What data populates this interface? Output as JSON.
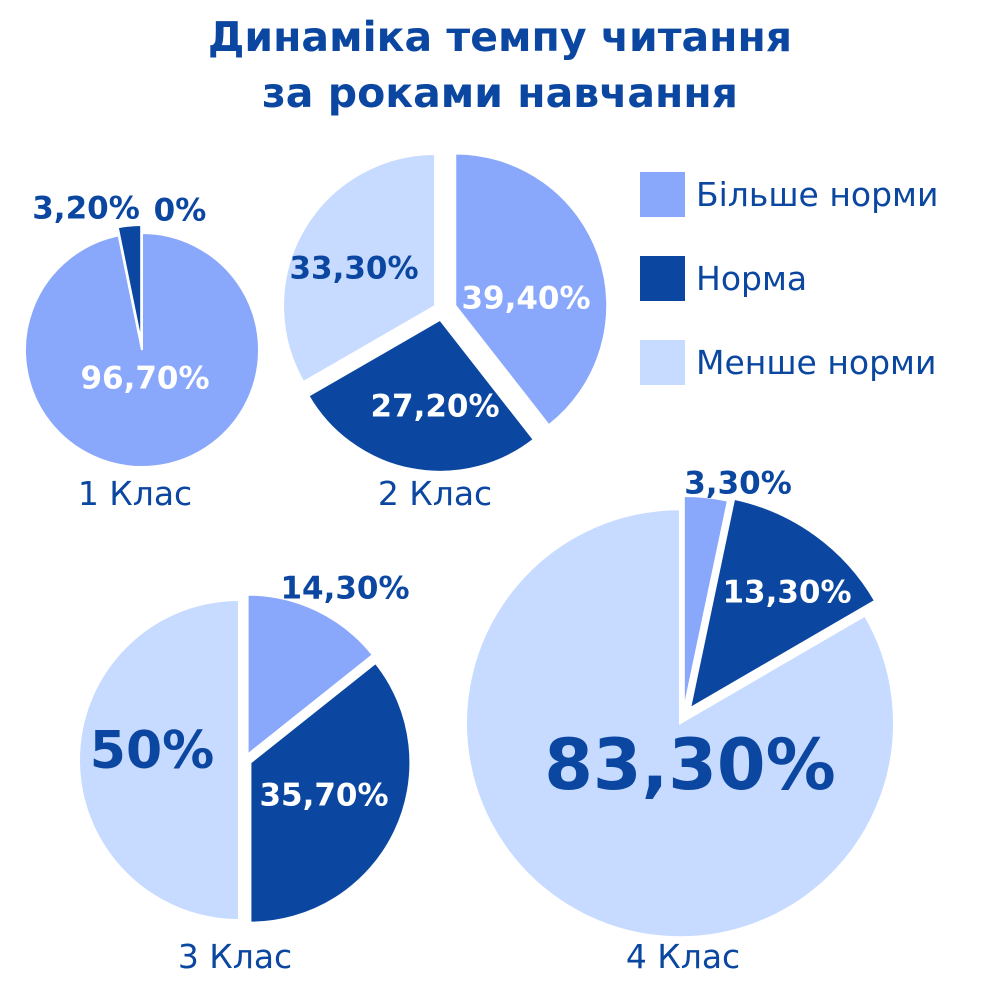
{
  "title_line1": "Динаміка темпу читання",
  "title_line2": "за роками навчання",
  "colors": {
    "more": "#8aa8fb",
    "norm": "#0b47a1",
    "less": "#c7daff"
  },
  "legend": [
    {
      "label": "Більше норми",
      "color": "#8aa8fb"
    },
    {
      "label": "Норма",
      "color": "#0b47a1"
    },
    {
      "label": "Менше норми",
      "color": "#c7daff"
    }
  ],
  "chart_data": [
    {
      "type": "pie",
      "title": "1 Клас",
      "labels": [
        "Більше норми",
        "Норма",
        "Менше норми"
      ],
      "values": [
        96.7,
        3.2,
        0
      ],
      "value_labels": [
        "96,70%",
        "3,20%",
        "0%"
      ]
    },
    {
      "type": "pie",
      "title": "2 Клас",
      "labels": [
        "Більше норми",
        "Норма",
        "Менше норми"
      ],
      "values": [
        39.4,
        27.2,
        33.3
      ],
      "value_labels": [
        "39,40%",
        "27,20%",
        "33,30%"
      ]
    },
    {
      "type": "pie",
      "title": "3 Клас",
      "labels": [
        "Більше норми",
        "Норма",
        "Менше норми"
      ],
      "values": [
        14.3,
        35.7,
        50
      ],
      "value_labels": [
        "14,30%",
        "35,70%",
        "50%"
      ]
    },
    {
      "type": "pie",
      "title": "4 Клас",
      "labels": [
        "Більше норми",
        "Норма",
        "Менше норми"
      ],
      "values": [
        3.3,
        13.3,
        83.3
      ],
      "value_labels": [
        "3,30%",
        "13,30%",
        "83,30%"
      ]
    }
  ]
}
